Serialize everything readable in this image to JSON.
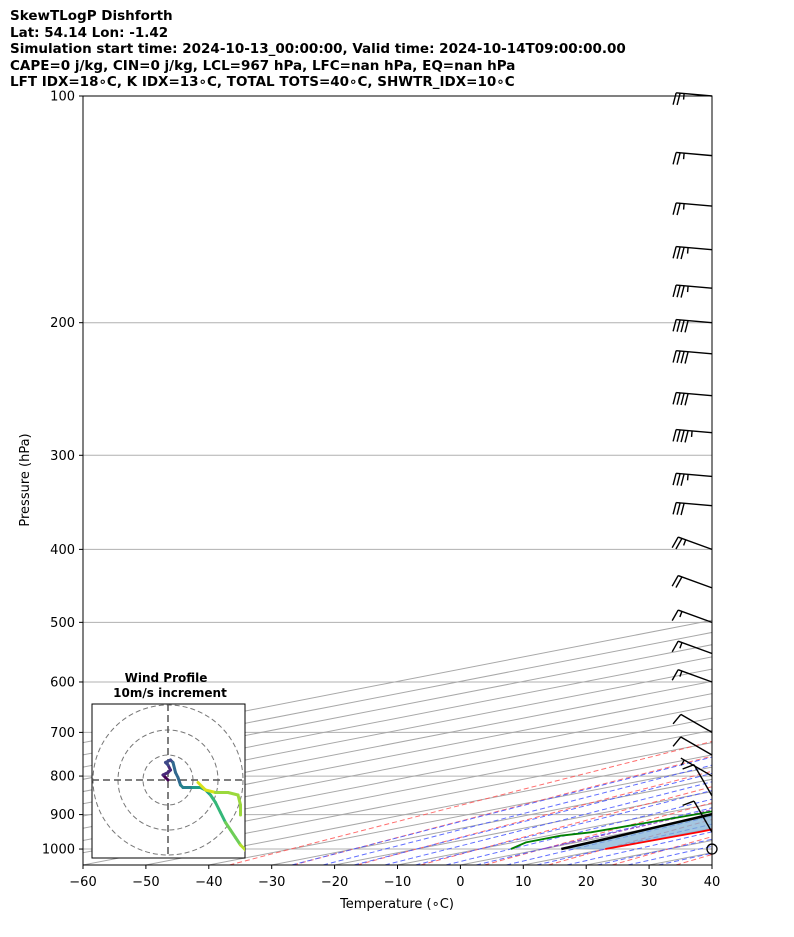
{
  "header": {
    "line1": "SkewTLogP Dishforth",
    "line2": "Lat: 54.14   Lon: -1.42",
    "line3": "Simulation start time: 2024-10-13_00:00:00, Valid time: 2024-10-14T09:00:00.00",
    "line4": "CAPE=0 j/kg, CIN=0 j/kg, LCL=967 hPa, LFC=nan hPa, EQ=nan hPa",
    "line5": "LFT IDX=18∘C, K IDX=13∘C, TOTAL TOTS=40∘C, SHWTR_IDX=10∘C"
  },
  "chart_data": {
    "type": "skewt",
    "xlabel": "Temperature (∘C)",
    "ylabel": "Pressure (hPa)",
    "xlim": [
      -60,
      40
    ],
    "ylim": [
      1050,
      100
    ],
    "xticks": [
      "−60",
      "−50",
      "−40",
      "−30",
      "−20",
      "−10",
      "0",
      "10",
      "20",
      "30",
      "40"
    ],
    "xtick_values": [
      -60,
      -50,
      -40,
      -30,
      -20,
      -10,
      0,
      10,
      20,
      30,
      40
    ],
    "yticks": [
      "1000",
      "900",
      "800",
      "700",
      "600",
      "500",
      "400",
      "300",
      "200",
      "100"
    ],
    "ytick_values": [
      1000,
      900,
      800,
      700,
      600,
      500,
      400,
      300,
      200,
      100
    ],
    "series": [
      {
        "name": "temperature",
        "color": "#ff0000",
        "points": [
          [
            1000,
            10
          ],
          [
            950,
            11
          ],
          [
            900,
            10.5
          ],
          [
            850,
            10
          ],
          [
            800,
            9
          ],
          [
            750,
            7.5
          ],
          [
            700,
            5.5
          ],
          [
            650,
            3
          ],
          [
            600,
            0
          ],
          [
            550,
            -3
          ],
          [
            500,
            -7
          ],
          [
            450,
            -11
          ],
          [
            400,
            -17
          ],
          [
            370,
            -22
          ],
          [
            350,
            -27
          ],
          [
            330,
            -30
          ],
          [
            300,
            -32
          ],
          [
            280,
            -34
          ],
          [
            260,
            -36
          ],
          [
            240,
            -38
          ],
          [
            220,
            -40
          ],
          [
            200,
            -44
          ],
          [
            180,
            -50
          ],
          [
            160,
            -55
          ],
          [
            140,
            -59
          ],
          [
            120,
            -63
          ],
          [
            105,
            -66
          ],
          [
            100,
            -66
          ]
        ]
      },
      {
        "name": "dewpoint",
        "color": "#008000",
        "points": [
          [
            1000,
            -5
          ],
          [
            980,
            -8
          ],
          [
            960,
            -8
          ],
          [
            950,
            -6
          ],
          [
            900,
            -4
          ],
          [
            850,
            -3
          ],
          [
            800,
            -4
          ],
          [
            750,
            -6
          ],
          [
            700,
            -8
          ],
          [
            650,
            -12
          ],
          [
            600,
            -16
          ],
          [
            550,
            -20
          ],
          [
            530,
            -20
          ],
          [
            500,
            -22
          ],
          [
            450,
            -30
          ],
          [
            420,
            -34
          ],
          [
            400,
            -34
          ],
          [
            360,
            -35
          ],
          [
            330,
            -36
          ],
          [
            310,
            -38
          ],
          [
            300,
            -37
          ],
          [
            280,
            -36
          ],
          [
            250,
            -37
          ],
          [
            220,
            -39
          ],
          [
            200,
            -41
          ],
          [
            185,
            -45
          ],
          [
            170,
            -52
          ],
          [
            140,
            -52
          ],
          [
            120,
            -60
          ],
          [
            100,
            -67
          ]
        ]
      },
      {
        "name": "parcel",
        "color": "#000000",
        "points": [
          [
            1000,
            3
          ],
          [
            967,
            1.7
          ],
          [
            900,
            -1.5
          ],
          [
            800,
            -7
          ],
          [
            700,
            -13.5
          ],
          [
            600,
            -21.5
          ],
          [
            500,
            -32
          ],
          [
            400,
            -46
          ],
          [
            300,
            -63
          ],
          [
            250,
            -74
          ],
          [
            200,
            -86
          ],
          [
            150,
            -101
          ],
          [
            100,
            -121
          ]
        ]
      }
    ],
    "wind_barbs": [
      {
        "p": 100,
        "speed_kt": 25
      },
      {
        "p": 120,
        "speed_kt": 25
      },
      {
        "p": 140,
        "speed_kt": 25
      },
      {
        "p": 160,
        "speed_kt": 35
      },
      {
        "p": 180,
        "speed_kt": 35
      },
      {
        "p": 200,
        "speed_kt": 40
      },
      {
        "p": 220,
        "speed_kt": 40
      },
      {
        "p": 250,
        "speed_kt": 40
      },
      {
        "p": 280,
        "speed_kt": 45
      },
      {
        "p": 320,
        "speed_kt": 35
      },
      {
        "p": 350,
        "speed_kt": 30
      },
      {
        "p": 400,
        "speed_kt": 25
      },
      {
        "p": 450,
        "speed_kt": 20
      },
      {
        "p": 500,
        "speed_kt": 15
      },
      {
        "p": 550,
        "speed_kt": 15
      },
      {
        "p": 600,
        "speed_kt": 15
      },
      {
        "p": 700,
        "speed_kt": 10
      },
      {
        "p": 750,
        "speed_kt": 10
      },
      {
        "p": 800,
        "speed_kt": 5
      },
      {
        "p": 850,
        "speed_kt": 10
      },
      {
        "p": 950,
        "speed_kt": 10
      },
      {
        "p": 1000,
        "speed_kt": 0
      }
    ],
    "hodograph": {
      "title": "Wind Profile",
      "subtitle": "10m/s increment",
      "rings_ms": [
        10,
        20,
        30
      ],
      "points": [
        [
          -1,
          1
        ],
        [
          -1.5,
          3
        ],
        [
          -1,
          5
        ],
        [
          -0.5,
          8
        ],
        [
          0.5,
          11
        ],
        [
          1,
          13
        ],
        [
          1.5,
          17
        ],
        [
          2,
          21
        ],
        [
          3,
          23
        ],
        [
          5,
          25
        ],
        [
          7,
          27
        ],
        [
          9,
          29
        ],
        [
          11,
          29
        ],
        [
          13,
          31
        ],
        [
          15,
          31
        ],
        [
          17,
          33
        ],
        [
          19,
          34
        ],
        [
          21,
          35
        ],
        [
          22,
          34
        ],
        [
          24,
          33
        ],
        [
          25,
          32
        ],
        [
          27,
          29
        ],
        [
          29,
          26
        ],
        [
          31,
          23
        ],
        [
          33,
          21
        ],
        [
          35,
          19
        ],
        [
          37,
          17
        ],
        [
          39,
          14
        ],
        [
          41,
          12
        ],
        [
          43,
          11
        ],
        [
          45,
          8
        ],
        [
          47,
          6
        ],
        [
          49,
          4
        ]
      ],
      "points_units": "u/v in m/s",
      "upper_points": [
        [
          -3,
          -7
        ],
        [
          -5,
          -10
        ],
        [
          -7,
          -12
        ],
        [
          -9,
          -13
        ],
        [
          -12,
          -13
        ],
        [
          -15,
          -12
        ],
        [
          -17,
          -10
        ],
        [
          -19,
          -8
        ],
        [
          -20,
          -6
        ]
      ]
    }
  }
}
